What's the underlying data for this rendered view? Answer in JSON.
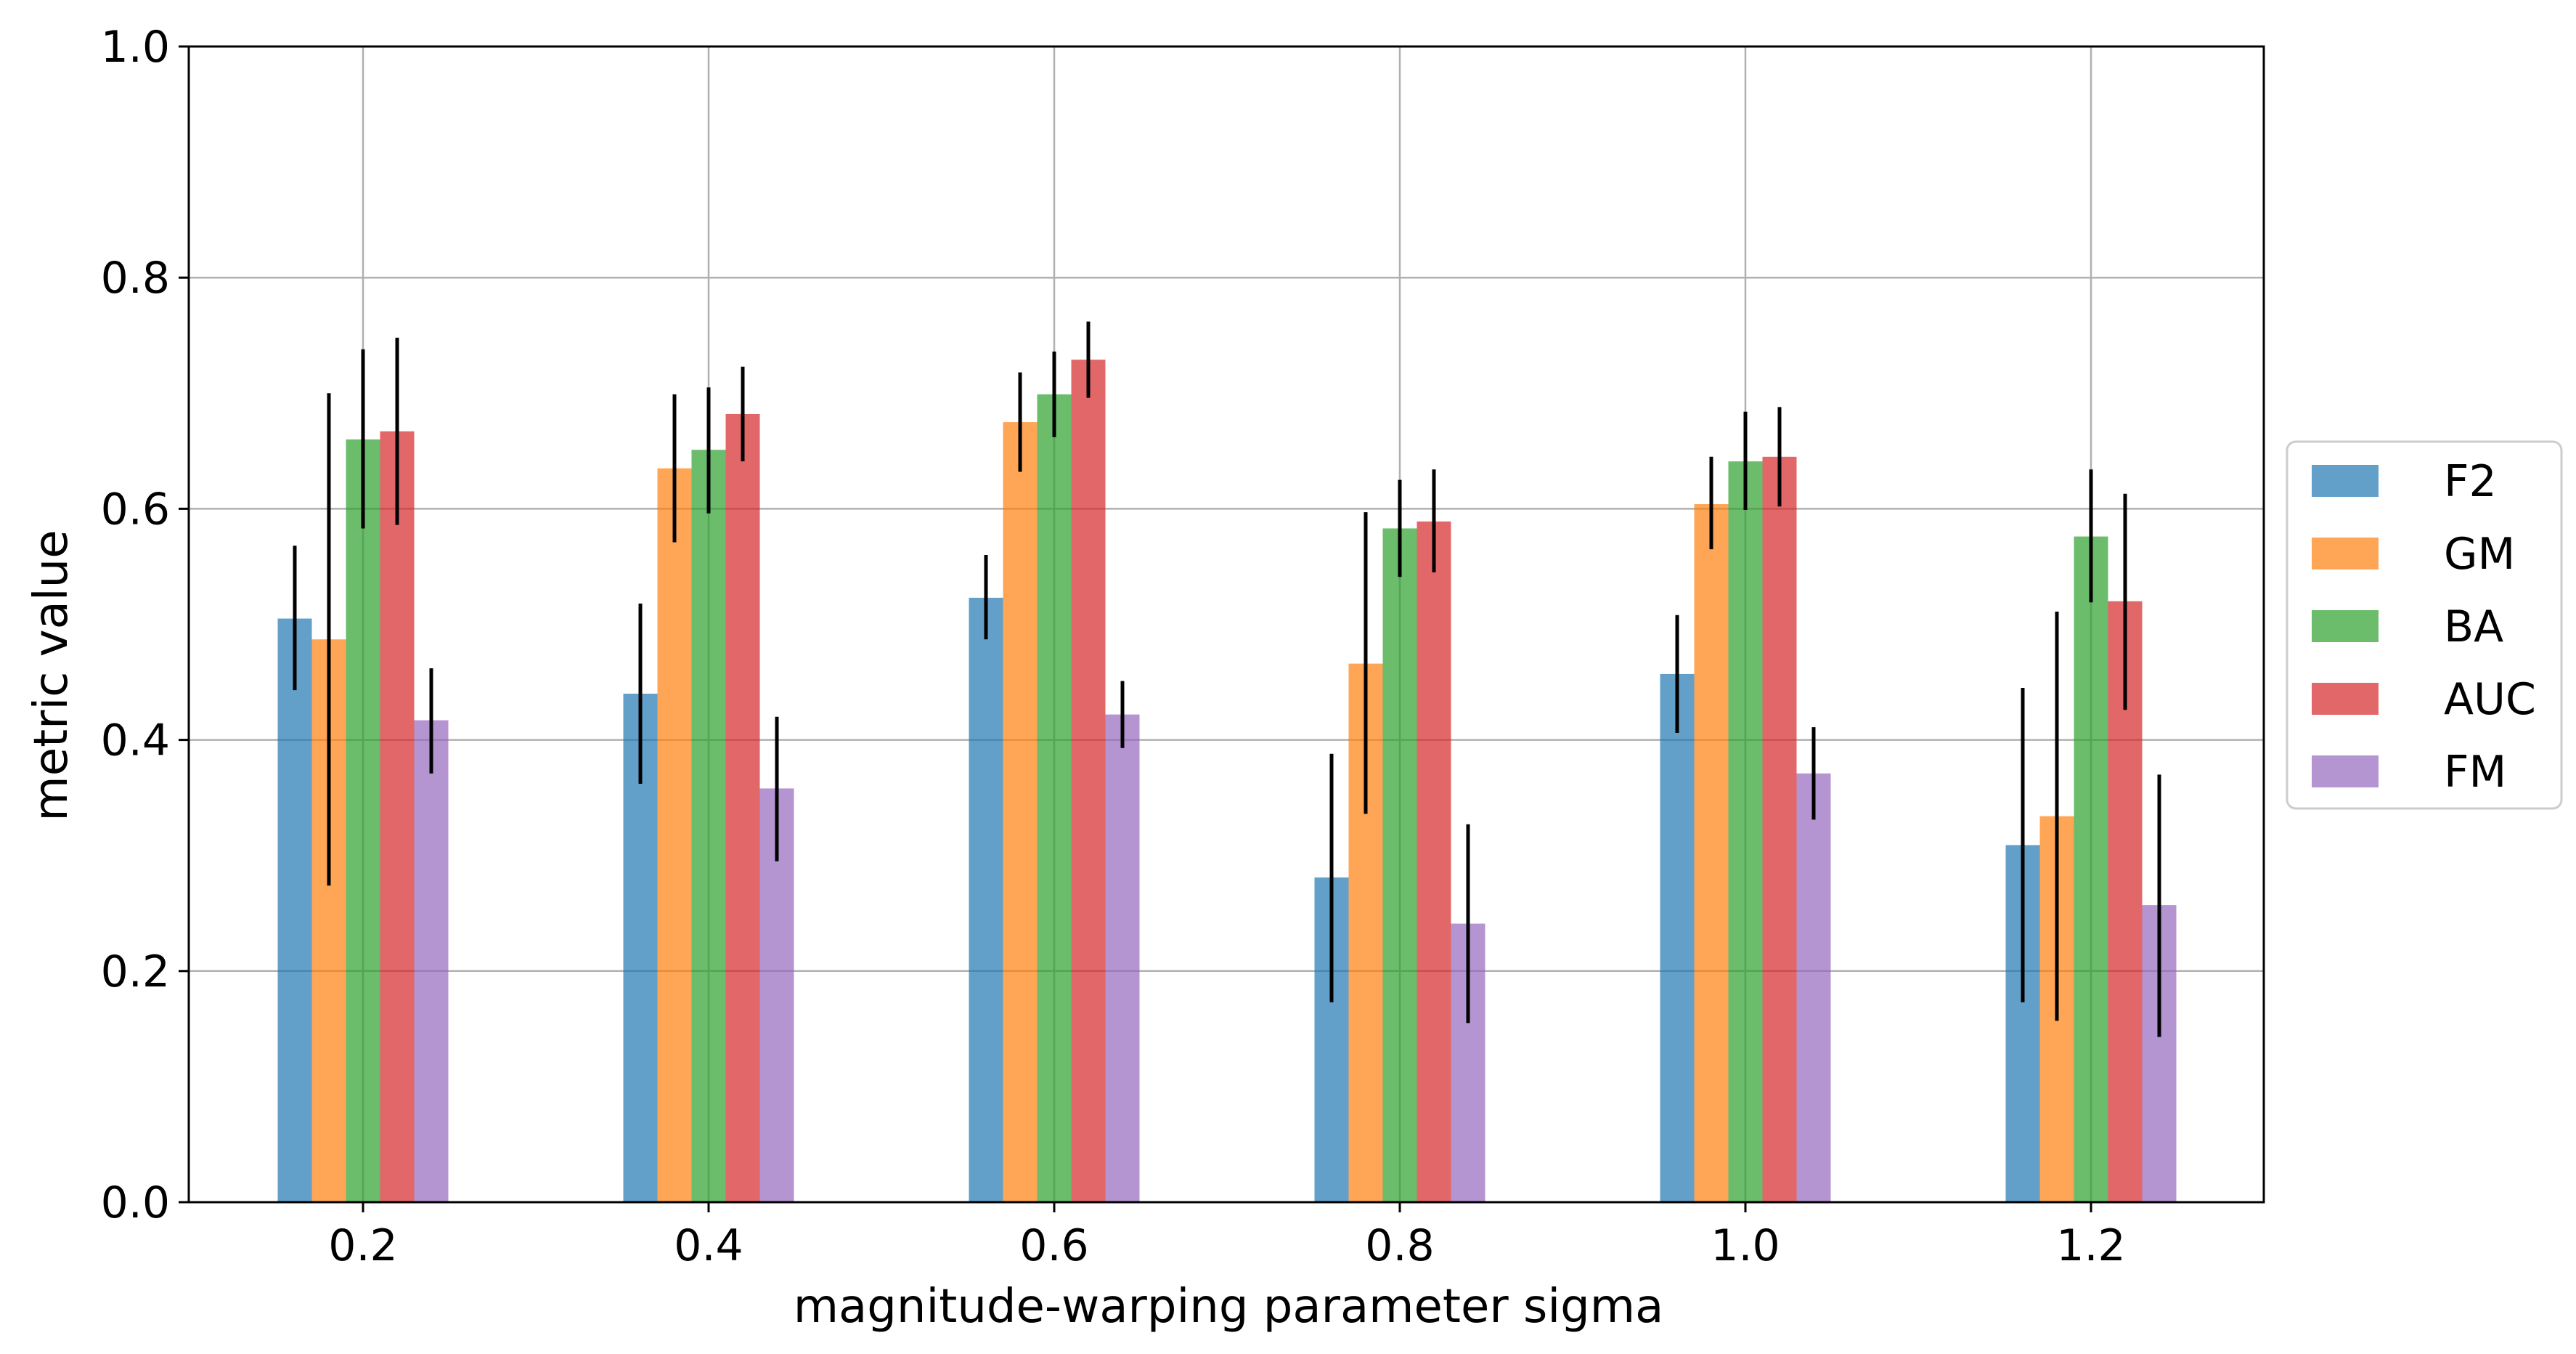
{
  "chart_data": {
    "type": "bar",
    "title": "",
    "xlabel": "magnitude-warping parameter sigma",
    "ylabel": "metric value",
    "categories": [
      "0.2",
      "0.4",
      "0.6",
      "0.8",
      "1.0",
      "1.2"
    ],
    "ylim": [
      0,
      1.0
    ],
    "yticks": [
      "0.0",
      "0.2",
      "0.4",
      "0.6",
      "0.8",
      "1.0"
    ],
    "grid": true,
    "legend_position": "center-right-outside",
    "series": [
      {
        "name": "F2",
        "color": "#1f77b4",
        "values": [
          0.505,
          0.44,
          0.523,
          0.281,
          0.457,
          0.309
        ],
        "errors": [
          [
            0.443,
            0.568
          ],
          [
            0.362,
            0.518
          ],
          [
            0.487,
            0.56
          ],
          [
            0.173,
            0.388
          ],
          [
            0.406,
            0.508
          ],
          [
            0.173,
            0.445
          ]
        ]
      },
      {
        "name": "GM",
        "color": "#ff7f0e",
        "values": [
          0.487,
          0.635,
          0.675,
          0.466,
          0.604,
          0.334
        ],
        "errors": [
          [
            0.274,
            0.7
          ],
          [
            0.571,
            0.699
          ],
          [
            0.632,
            0.718
          ],
          [
            0.336,
            0.597
          ],
          [
            0.565,
            0.645
          ],
          [
            0.157,
            0.511
          ]
        ]
      },
      {
        "name": "BA",
        "color": "#2ca02c",
        "values": [
          0.66,
          0.651,
          0.699,
          0.583,
          0.641,
          0.576
        ],
        "errors": [
          [
            0.583,
            0.738
          ],
          [
            0.596,
            0.705
          ],
          [
            0.662,
            0.736
          ],
          [
            0.541,
            0.625
          ],
          [
            0.599,
            0.684
          ],
          [
            0.519,
            0.634
          ]
        ]
      },
      {
        "name": "AUC",
        "color": "#d62728",
        "values": [
          0.667,
          0.682,
          0.729,
          0.589,
          0.645,
          0.52
        ],
        "errors": [
          [
            0.586,
            0.748
          ],
          [
            0.641,
            0.723
          ],
          [
            0.696,
            0.762
          ],
          [
            0.545,
            0.634
          ],
          [
            0.602,
            0.688
          ],
          [
            0.426,
            0.613
          ]
        ]
      },
      {
        "name": "FM",
        "color": "#9467bd",
        "values": [
          0.417,
          0.358,
          0.422,
          0.241,
          0.371,
          0.257
        ],
        "errors": [
          [
            0.371,
            0.462
          ],
          [
            0.295,
            0.42
          ],
          [
            0.393,
            0.451
          ],
          [
            0.155,
            0.327
          ],
          [
            0.331,
            0.411
          ],
          [
            0.143,
            0.37
          ]
        ]
      }
    ]
  }
}
